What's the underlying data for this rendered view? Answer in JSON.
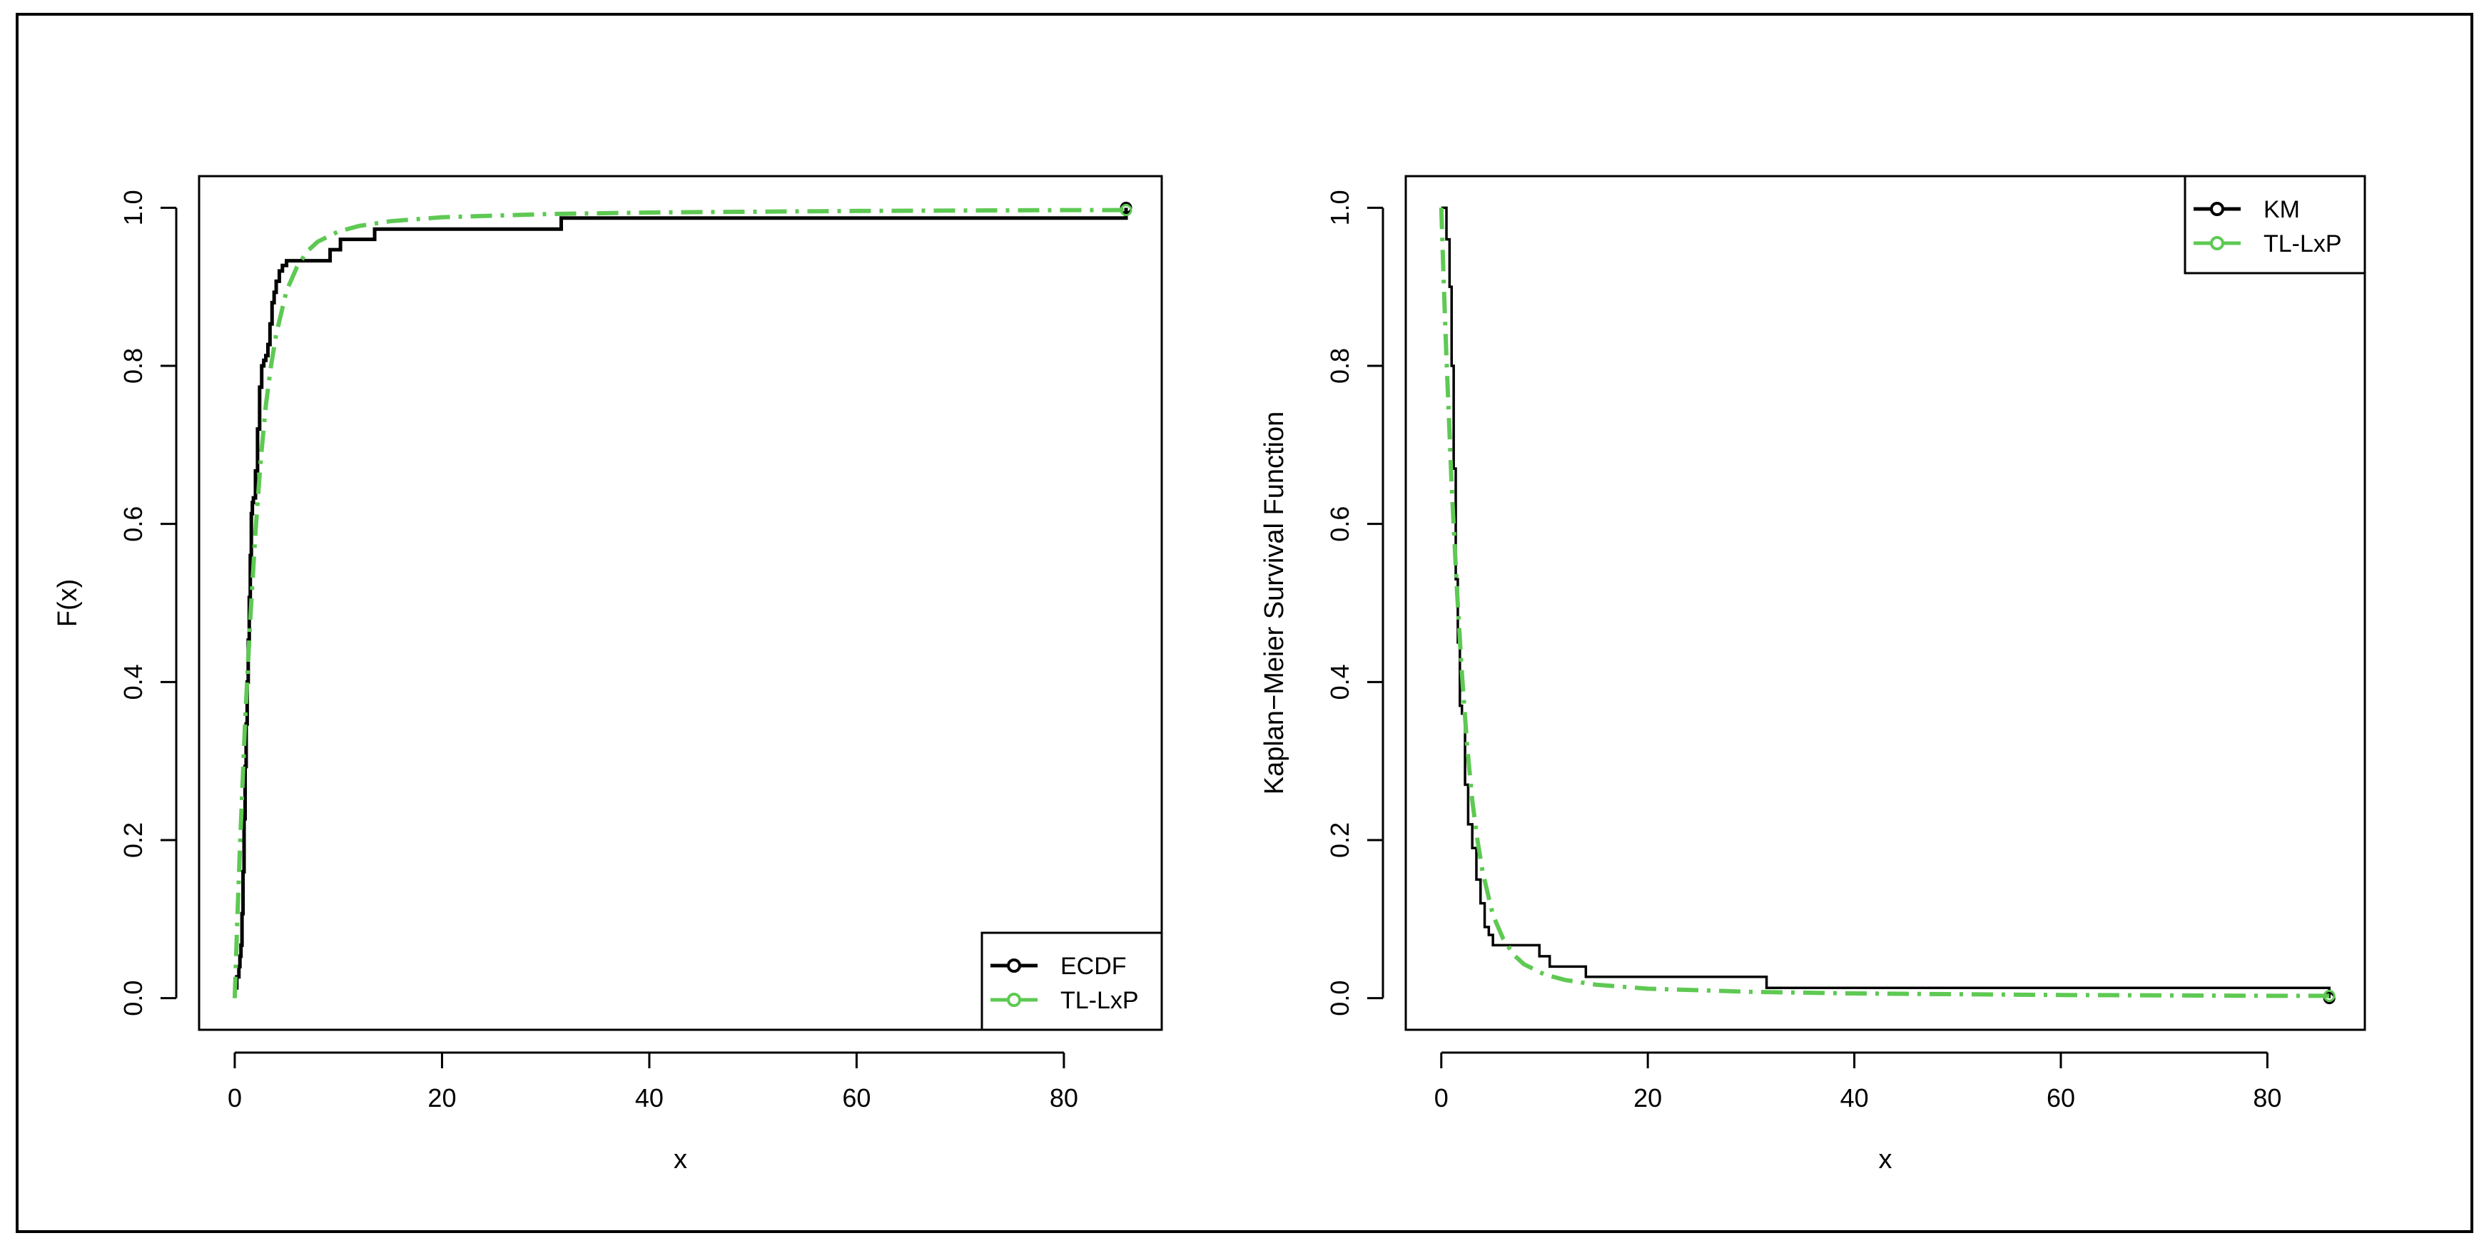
{
  "colors": {
    "empirical": "#000000",
    "fitted": "#5ec953",
    "frame": "#000000",
    "background": "#ffffff"
  },
  "chart_data": [
    {
      "type": "line",
      "panel": "left",
      "title": "",
      "xlabel": "x",
      "ylabel": "F(x)",
      "xlim": [
        -3.44,
        89.44
      ],
      "ylim": [
        -0.04,
        1.04
      ],
      "xticks": [
        0,
        20,
        40,
        60,
        80
      ],
      "yticks": [
        0.0,
        0.2,
        0.4,
        0.6,
        0.8,
        1.0
      ],
      "xtick_labels": [
        "0",
        "20",
        "40",
        "60",
        "80"
      ],
      "ytick_labels": [
        "0.0",
        "0.2",
        "0.4",
        "0.6",
        "0.8",
        "1.0"
      ],
      "legend_position": "bottom-right",
      "grid": false,
      "series": [
        {
          "name": "ECDF",
          "style": "step",
          "color": "#000000",
          "x": [
            0.1,
            0.2,
            0.4,
            0.5,
            0.6,
            0.7,
            0.8,
            0.9,
            1.0,
            1.1,
            1.2,
            1.3,
            1.4,
            1.5,
            1.6,
            1.7,
            1.8,
            2.0,
            2.2,
            2.4,
            2.6,
            2.8,
            3.0,
            3.2,
            3.4,
            3.6,
            3.8,
            4.0,
            4.3,
            4.6,
            5.0,
            9.2,
            10.2,
            11.0,
            13.5,
            31.5,
            86.0
          ],
          "y": [
            0.013,
            0.027,
            0.04,
            0.053,
            0.067,
            0.107,
            0.16,
            0.227,
            0.293,
            0.347,
            0.4,
            0.453,
            0.507,
            0.56,
            0.613,
            0.627,
            0.633,
            0.667,
            0.72,
            0.773,
            0.8,
            0.807,
            0.813,
            0.827,
            0.853,
            0.88,
            0.893,
            0.907,
            0.92,
            0.927,
            0.933,
            0.947,
            0.96,
            0.96,
            0.973,
            0.987,
            1.0
          ]
        },
        {
          "name": "TL-LxP",
          "style": "dashdot",
          "color": "#5ec953",
          "x": [
            0,
            0.25,
            0.5,
            1,
            1.5,
            2,
            2.5,
            3,
            3.5,
            4,
            5,
            6,
            7,
            8,
            10,
            12,
            15,
            20,
            25,
            30,
            40,
            50,
            60,
            70,
            80,
            86
          ],
          "y": [
            0.0,
            0.1,
            0.19,
            0.35,
            0.48,
            0.59,
            0.68,
            0.75,
            0.8,
            0.84,
            0.895,
            0.925,
            0.945,
            0.957,
            0.97,
            0.977,
            0.983,
            0.988,
            0.99,
            0.992,
            0.994,
            0.995,
            0.996,
            0.9965,
            0.997,
            0.997
          ]
        }
      ]
    },
    {
      "type": "line",
      "panel": "right",
      "title": "",
      "xlabel": "x",
      "ylabel": "Kaplan−Meier Survival Function",
      "xlim": [
        -3.44,
        89.44
      ],
      "ylim": [
        -0.04,
        1.04
      ],
      "xticks": [
        0,
        20,
        40,
        60,
        80
      ],
      "yticks": [
        0.0,
        0.2,
        0.4,
        0.6,
        0.8,
        1.0
      ],
      "xtick_labels": [
        "0",
        "20",
        "40",
        "60",
        "80"
      ],
      "ytick_labels": [
        "0.0",
        "0.2",
        "0.4",
        "0.6",
        "0.8",
        "1.0"
      ],
      "legend_position": "top-right",
      "grid": false,
      "series": [
        {
          "name": "KM",
          "style": "step",
          "color": "#000000",
          "x": [
            0,
            0.5,
            0.8,
            1.0,
            1.2,
            1.4,
            1.6,
            1.8,
            2.0,
            2.3,
            2.6,
            3.0,
            3.4,
            3.8,
            4.2,
            4.6,
            5.0,
            9.5,
            10.5,
            11.5,
            14.0,
            31.5,
            86.0
          ],
          "y": [
            1.0,
            0.96,
            0.9,
            0.8,
            0.67,
            0.53,
            0.45,
            0.37,
            0.36,
            0.27,
            0.22,
            0.19,
            0.15,
            0.12,
            0.09,
            0.08,
            0.067,
            0.053,
            0.04,
            0.04,
            0.027,
            0.013,
            0.0
          ]
        },
        {
          "name": "TL-LxP",
          "style": "dashdot",
          "color": "#5ec953",
          "x": [
            0,
            0.25,
            0.5,
            1,
            1.5,
            2,
            2.5,
            3,
            3.5,
            4,
            5,
            6,
            7,
            8,
            10,
            12,
            15,
            20,
            25,
            30,
            40,
            50,
            60,
            70,
            80,
            86
          ],
          "y": [
            1.0,
            0.9,
            0.81,
            0.65,
            0.52,
            0.41,
            0.32,
            0.25,
            0.2,
            0.16,
            0.105,
            0.075,
            0.055,
            0.043,
            0.03,
            0.023,
            0.017,
            0.012,
            0.01,
            0.008,
            0.006,
            0.005,
            0.004,
            0.0035,
            0.003,
            0.003
          ]
        }
      ]
    }
  ]
}
